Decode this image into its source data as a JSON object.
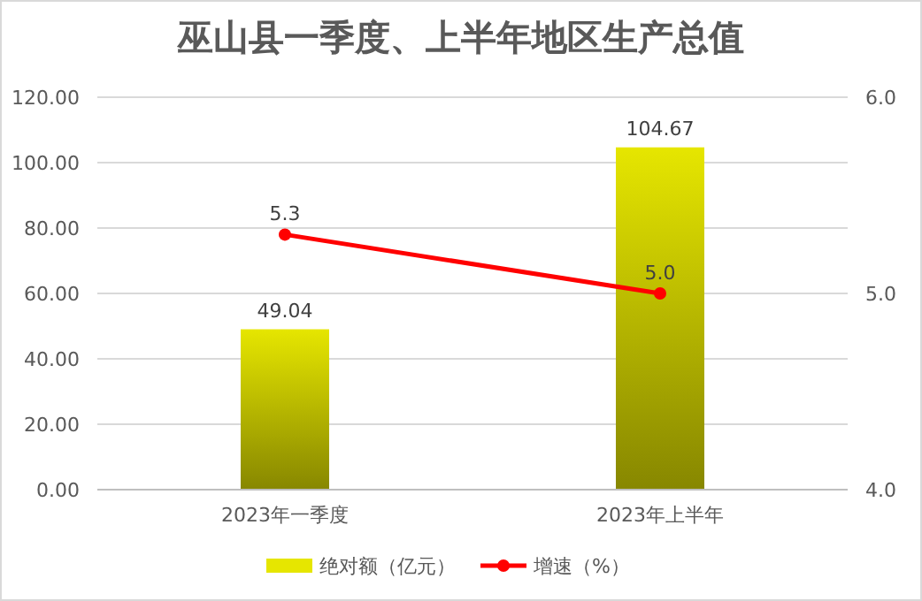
{
  "chart_data": {
    "type": "bar",
    "title": "巫山县一季度、上半年地区生产总值",
    "categories": [
      "2023年一季度",
      "2023年上半年"
    ],
    "series": [
      {
        "name": "绝对额（亿元）",
        "color": "#e6e600",
        "values": [
          49.04,
          104.67
        ],
        "value_labels": [
          "49.04",
          "104.67"
        ]
      },
      {
        "name": "增速（%）",
        "type": "line",
        "axis": "y2",
        "color": "#ff0000",
        "values": [
          5.3,
          5.0
        ],
        "value_labels": [
          "5.3",
          "5.0"
        ]
      }
    ],
    "ylim": [
      0,
      120
    ],
    "yticks": [
      {
        "value": 0,
        "label": "0.00"
      },
      {
        "value": 20,
        "label": "20.00"
      },
      {
        "value": 40,
        "label": "40.00"
      },
      {
        "value": 60,
        "label": "60.00"
      },
      {
        "value": 80,
        "label": "80.00"
      },
      {
        "value": 100,
        "label": "100.00"
      },
      {
        "value": 120,
        "label": "120.00"
      }
    ],
    "y2lim": [
      4,
      6
    ],
    "y2ticks": [
      {
        "value": 4,
        "label": "4.0"
      },
      {
        "value": 5,
        "label": "5.0"
      },
      {
        "value": 6,
        "label": "6.0"
      }
    ],
    "grid": "y",
    "legend": "bottom",
    "marker": "circle"
  }
}
